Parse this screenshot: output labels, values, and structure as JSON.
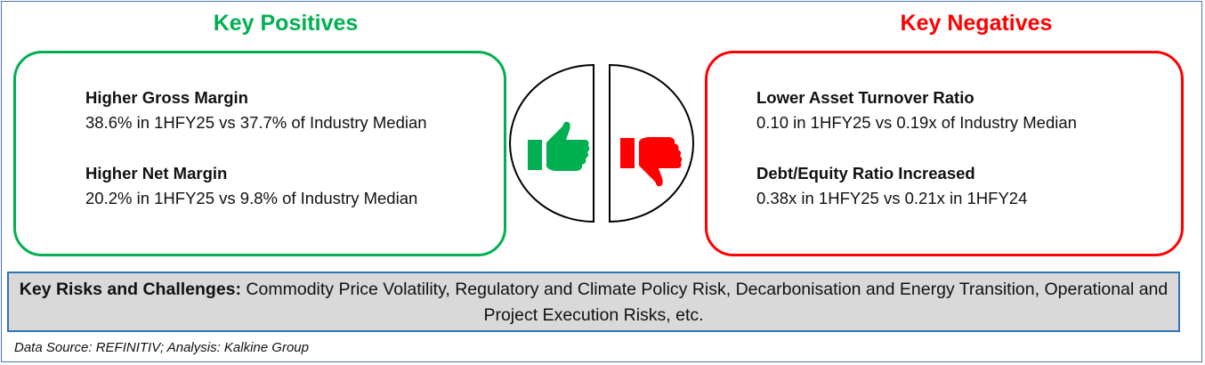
{
  "positives": {
    "title": "Key Positives",
    "color": "#00b050",
    "items": [
      {
        "heading": "Higher Gross Margin",
        "text": "38.6% in 1HFY25 vs 37.7%  of Industry Median"
      },
      {
        "heading": "Higher Net Margin",
        "text": "20.2% in 1HFY25 vs 9.8%  of Industry Median"
      }
    ],
    "icon": "thumbs-up-icon"
  },
  "negatives": {
    "title": "Key Negatives",
    "color": "#ff0000",
    "items": [
      {
        "heading": "Lower Asset Turnover Ratio",
        "text": "0.10 in 1HFY25 vs 0.19x of Industry Median"
      },
      {
        "heading": "Debt/Equity Ratio Increased",
        "text": "0.38x in 1HFY25 vs 0.21x in 1HFY24"
      }
    ],
    "icon": "thumbs-down-icon"
  },
  "risks": {
    "label": "Key Risks and Challenges:",
    "text": " Commodity Price Volatility, Regulatory and Climate Policy Risk, Decarbonisation and Energy Transition, Operational and Project Execution Risks, etc."
  },
  "footer": "Data Source: REFINITIV; Analysis: Kalkine Group"
}
